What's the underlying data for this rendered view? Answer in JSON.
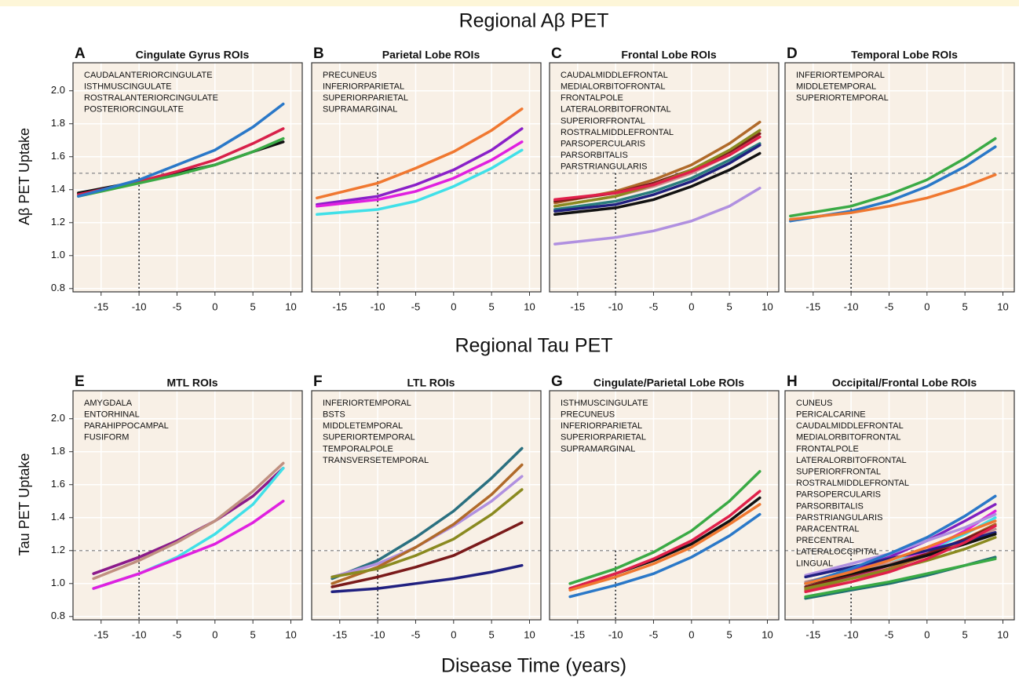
{
  "figure": {
    "row_titles": [
      "Regional Aβ PET",
      "Regional Tau PET"
    ],
    "ylabels": [
      "Aβ PET Uptake",
      "Tau PET Uptake"
    ],
    "xlabel": "Disease Time (years)"
  },
  "chart_data": [
    {
      "type": "line",
      "label": "A",
      "title": "Cingulate Gyrus ROIs",
      "x": [
        -18,
        -10,
        -5,
        0,
        5,
        9
      ],
      "xlim": [
        -18.7,
        11.5
      ],
      "ylim": [
        0.78,
        2.17
      ],
      "xticks": [
        -15,
        -10,
        -5,
        0,
        5,
        10
      ],
      "yticks": [
        {
          "value": 0.8,
          "label": "0.8"
        },
        {
          "value": 1,
          "label": "1.0"
        },
        {
          "value": 1.2,
          "label": "1.2"
        },
        {
          "value": 1.4,
          "label": "1.4"
        },
        {
          "value": 1.6,
          "label": "1.6"
        },
        {
          "value": 1.8,
          "label": "1.8"
        },
        {
          "value": 2,
          "label": "2.0"
        }
      ],
      "hline": 1.5,
      "vline": -10,
      "grid": true,
      "series": [
        {
          "name": "CAUDALANTERIORCINGULATE",
          "color": "#111111",
          "values": [
            1.38,
            1.45,
            1.5,
            1.55,
            1.63,
            1.69
          ]
        },
        {
          "name": "ISTHMUSCINGULATE",
          "color": "#d8204a",
          "values": [
            1.37,
            1.45,
            1.51,
            1.58,
            1.68,
            1.77
          ]
        },
        {
          "name": "ROSTRALANTERIORCINGULATE",
          "color": "#3aaa45",
          "values": [
            1.36,
            1.44,
            1.49,
            1.55,
            1.63,
            1.71
          ]
        },
        {
          "name": "POSTERIORCINGULATE",
          "color": "#2a78c8",
          "values": [
            1.36,
            1.46,
            1.55,
            1.64,
            1.78,
            1.92
          ]
        }
      ]
    },
    {
      "type": "line",
      "label": "B",
      "title": "Parietal Lobe ROIs",
      "x": [
        -18,
        -10,
        -5,
        0,
        5,
        9
      ],
      "xlim": [
        -18.7,
        11.5
      ],
      "ylim": [
        0.78,
        2.17
      ],
      "xticks": [
        -15,
        -10,
        -5,
        0,
        5,
        10
      ],
      "hline": 1.5,
      "vline": -10,
      "grid": true,
      "series": [
        {
          "name": "PRECUNEUS",
          "color": "#f07830",
          "values": [
            1.35,
            1.44,
            1.53,
            1.63,
            1.76,
            1.89
          ]
        },
        {
          "name": "INFERIORPARIETAL",
          "color": "#8a20c8",
          "values": [
            1.31,
            1.36,
            1.43,
            1.52,
            1.64,
            1.77
          ]
        },
        {
          "name": "SUPERIORPARIETAL",
          "color": "#40e0e8",
          "values": [
            1.25,
            1.28,
            1.33,
            1.42,
            1.53,
            1.64
          ]
        },
        {
          "name": "SUPRAMARGINAL",
          "color": "#e020e0",
          "values": [
            1.3,
            1.34,
            1.39,
            1.47,
            1.58,
            1.69
          ]
        }
      ]
    },
    {
      "type": "line",
      "label": "C",
      "title": "Frontal Lobe ROIs",
      "x": [
        -18,
        -10,
        -5,
        0,
        5,
        9
      ],
      "xlim": [
        -18.7,
        11.5
      ],
      "ylim": [
        0.78,
        2.17
      ],
      "xticks": [
        -15,
        -10,
        -5,
        0,
        5,
        10
      ],
      "hline": 1.5,
      "vline": -10,
      "grid": true,
      "series": [
        {
          "name": "CAUDALMIDDLEFRONTAL",
          "color": "#d08a8a",
          "values": [
            1.3,
            1.36,
            1.42,
            1.5,
            1.61,
            1.72
          ]
        },
        {
          "name": "MEDIALORBITOFRONTAL",
          "color": "#2a7d7d",
          "values": [
            1.28,
            1.33,
            1.39,
            1.47,
            1.58,
            1.68
          ]
        },
        {
          "name": "FRONTALPOLE",
          "color": "#b090e0",
          "values": [
            1.07,
            1.11,
            1.15,
            1.21,
            1.3,
            1.41
          ]
        },
        {
          "name": "LATERALORBITOFRONTAL",
          "color": "#b06a2a",
          "values": [
            1.32,
            1.39,
            1.46,
            1.55,
            1.68,
            1.81
          ]
        },
        {
          "name": "SUPERIORFRONTAL",
          "color": "#7a1a1a",
          "values": [
            1.33,
            1.38,
            1.44,
            1.52,
            1.63,
            1.74
          ]
        },
        {
          "name": "ROSTRALMIDDLEFRONTAL",
          "color": "#8a8a20",
          "values": [
            1.3,
            1.36,
            1.43,
            1.52,
            1.64,
            1.76
          ]
        },
        {
          "name": "PARSOPERCULARIS",
          "color": "#202080",
          "values": [
            1.27,
            1.31,
            1.37,
            1.45,
            1.56,
            1.67
          ]
        },
        {
          "name": "PARSORBITALIS",
          "color": "#111111",
          "values": [
            1.25,
            1.29,
            1.34,
            1.42,
            1.52,
            1.62
          ]
        },
        {
          "name": "PARSTRIANGULARIS",
          "color": "#e0204a",
          "values": [
            1.34,
            1.38,
            1.43,
            1.51,
            1.61,
            1.72
          ]
        }
      ]
    },
    {
      "type": "line",
      "label": "D",
      "title": "Temporal Lobe ROIs",
      "x": [
        -18,
        -10,
        -5,
        0,
        5,
        9
      ],
      "xlim": [
        -18.7,
        11.5
      ],
      "ylim": [
        0.78,
        2.17
      ],
      "xticks": [
        -15,
        -10,
        -5,
        0,
        5,
        10
      ],
      "hline": 1.5,
      "vline": -10,
      "grid": true,
      "series": [
        {
          "name": "INFERIORTEMPORAL",
          "color": "#3aaa45",
          "values": [
            1.24,
            1.3,
            1.37,
            1.46,
            1.59,
            1.71
          ]
        },
        {
          "name": "MIDDLETEMPORAL",
          "color": "#2a78c8",
          "values": [
            1.21,
            1.27,
            1.33,
            1.42,
            1.54,
            1.66
          ]
        },
        {
          "name": "SUPERIORTEMPORAL",
          "color": "#f07830",
          "values": [
            1.22,
            1.26,
            1.3,
            1.35,
            1.42,
            1.49
          ]
        }
      ]
    },
    {
      "type": "line",
      "label": "E",
      "title": "MTL ROIs",
      "x": [
        -16,
        -10,
        -5,
        0,
        5,
        9
      ],
      "xlim": [
        -18.7,
        11.5
      ],
      "ylim": [
        0.78,
        2.17
      ],
      "xticks": [
        -15,
        -10,
        -5,
        0,
        5,
        10
      ],
      "yticks": [
        {
          "value": 0.8,
          "label": "0.8"
        },
        {
          "value": 1,
          "label": "1.0"
        },
        {
          "value": 1.2,
          "label": "1.2"
        },
        {
          "value": 1.4,
          "label": "1.4"
        },
        {
          "value": 1.6,
          "label": "1.6"
        },
        {
          "value": 1.8,
          "label": "1.8"
        },
        {
          "value": 2,
          "label": "2.0"
        }
      ],
      "hline": 1.2,
      "vline": -10,
      "grid": true,
      "series": [
        {
          "name": "AMYGDALA",
          "color": "#8b1a8b",
          "values": [
            1.06,
            1.16,
            1.26,
            1.38,
            1.53,
            1.7
          ]
        },
        {
          "name": "ENTORHINAL",
          "color": "#40e0e8",
          "values": [
            0.97,
            1.06,
            1.16,
            1.3,
            1.48,
            1.7
          ]
        },
        {
          "name": "PARAHIPPOCAMPAL",
          "color": "#e020e0",
          "values": [
            0.97,
            1.06,
            1.15,
            1.24,
            1.37,
            1.5
          ]
        },
        {
          "name": "FUSIFORM",
          "color": "#c09080",
          "values": [
            1.03,
            1.14,
            1.25,
            1.38,
            1.56,
            1.73
          ]
        }
      ]
    },
    {
      "type": "line",
      "label": "F",
      "title": "LTL ROIs",
      "x": [
        -16,
        -10,
        -5,
        0,
        5,
        9
      ],
      "xlim": [
        -18.7,
        11.5
      ],
      "ylim": [
        0.78,
        2.17
      ],
      "xticks": [
        -15,
        -10,
        -5,
        0,
        5,
        10
      ],
      "hline": 1.2,
      "vline": -10,
      "grid": true,
      "series": [
        {
          "name": "INFERIORTEMPORAL",
          "color": "#2a7080",
          "values": [
            1.03,
            1.14,
            1.28,
            1.44,
            1.64,
            1.82
          ]
        },
        {
          "name": "BSTS",
          "color": "#b090e0",
          "values": [
            1.04,
            1.12,
            1.22,
            1.35,
            1.5,
            1.65
          ]
        },
        {
          "name": "MIDDLETEMPORAL",
          "color": "#b06a2a",
          "values": [
            1.0,
            1.1,
            1.22,
            1.36,
            1.54,
            1.72
          ]
        },
        {
          "name": "SUPERIORTEMPORAL",
          "color": "#7a1a1a",
          "values": [
            0.98,
            1.04,
            1.1,
            1.17,
            1.28,
            1.37
          ]
        },
        {
          "name": "TEMPORALPOLE",
          "color": "#8a8a20",
          "values": [
            1.04,
            1.09,
            1.17,
            1.27,
            1.42,
            1.57
          ]
        },
        {
          "name": "TRANSVERSETEMPORAL",
          "color": "#202080",
          "values": [
            0.95,
            0.97,
            1.0,
            1.03,
            1.07,
            1.11
          ]
        }
      ]
    },
    {
      "type": "line",
      "label": "G",
      "title": "Cingulate/Parietal Lobe ROIs",
      "x": [
        -16,
        -10,
        -5,
        0,
        5,
        9
      ],
      "xlim": [
        -18.7,
        11.5
      ],
      "ylim": [
        0.78,
        2.17
      ],
      "xticks": [
        -15,
        -10,
        -5,
        0,
        5,
        10
      ],
      "hline": 1.2,
      "vline": -10,
      "grid": true,
      "series": [
        {
          "name": "ISTHMUSCINGULATE",
          "color": "#111111",
          "values": [
            0.97,
            1.06,
            1.14,
            1.24,
            1.38,
            1.52
          ]
        },
        {
          "name": "PRECUNEUS",
          "color": "#e0204a",
          "values": [
            0.97,
            1.06,
            1.15,
            1.26,
            1.41,
            1.56
          ]
        },
        {
          "name": "INFERIORPARIETAL",
          "color": "#3aaa45",
          "values": [
            1.0,
            1.09,
            1.19,
            1.32,
            1.5,
            1.68
          ]
        },
        {
          "name": "SUPERIORPARIETAL",
          "color": "#2a78c8",
          "values": [
            0.92,
            0.99,
            1.06,
            1.16,
            1.29,
            1.42
          ]
        },
        {
          "name": "SUPRAMARGINAL",
          "color": "#f07830",
          "values": [
            0.96,
            1.04,
            1.12,
            1.22,
            1.36,
            1.48
          ]
        }
      ]
    },
    {
      "type": "line",
      "label": "H",
      "title": "Occipital/Frontal Lobe ROIs",
      "x": [
        -16,
        -10,
        -5,
        0,
        5,
        9
      ],
      "xlim": [
        -18.7,
        11.5
      ],
      "ylim": [
        0.78,
        2.17
      ],
      "xticks": [
        -15,
        -10,
        -5,
        0,
        5,
        10
      ],
      "hline": 1.2,
      "vline": -10,
      "grid": true,
      "series": [
        {
          "name": "CUNEUS",
          "color": "#8020c0",
          "values": [
            1.0,
            1.08,
            1.16,
            1.26,
            1.38,
            1.48
          ]
        },
        {
          "name": "PERICALCARINE",
          "color": "#40e0e8",
          "values": [
            0.98,
            1.05,
            1.12,
            1.2,
            1.3,
            1.4
          ]
        },
        {
          "name": "CAUDALMIDDLEFRONTAL",
          "color": "#e020e0",
          "values": [
            0.97,
            1.04,
            1.11,
            1.2,
            1.32,
            1.44
          ]
        },
        {
          "name": "MEDIALORBITOFRONTAL",
          "color": "#c09090",
          "values": [
            1.01,
            1.07,
            1.12,
            1.18,
            1.26,
            1.33
          ]
        },
        {
          "name": "FRONTALPOLE",
          "color": "#207070",
          "values": [
            0.91,
            0.96,
            1.0,
            1.05,
            1.11,
            1.16
          ]
        },
        {
          "name": "LATERALORBITOFRONTAL",
          "color": "#b090e0",
          "values": [
            1.05,
            1.12,
            1.18,
            1.26,
            1.34,
            1.42
          ]
        },
        {
          "name": "SUPERIORFRONTAL",
          "color": "#b06a2a",
          "values": [
            0.96,
            1.03,
            1.09,
            1.17,
            1.27,
            1.36
          ]
        },
        {
          "name": "ROSTRALMIDDLEFRONTAL",
          "color": "#7a1a1a",
          "values": [
            0.98,
            1.05,
            1.11,
            1.18,
            1.27,
            1.35
          ]
        },
        {
          "name": "PARSOPERCULARIS",
          "color": "#8a8a20",
          "values": [
            0.97,
            1.03,
            1.08,
            1.14,
            1.21,
            1.28
          ]
        },
        {
          "name": "PARSORBITALIS",
          "color": "#202080",
          "values": [
            1.04,
            1.1,
            1.15,
            1.2,
            1.26,
            1.31
          ]
        },
        {
          "name": "PARSTRIANGULARIS",
          "color": "#111111",
          "values": [
            1.0,
            1.06,
            1.11,
            1.17,
            1.24,
            1.3
          ]
        },
        {
          "name": "PARACENTRAL",
          "color": "#e0204a",
          "values": [
            0.95,
            1.01,
            1.07,
            1.15,
            1.25,
            1.35
          ]
        },
        {
          "name": "PRECENTRAL",
          "color": "#3aaa45",
          "values": [
            0.92,
            0.97,
            1.01,
            1.06,
            1.11,
            1.15
          ]
        },
        {
          "name": "LATERALOCCIPITAL",
          "color": "#2a78c8",
          "values": [
            1.0,
            1.09,
            1.18,
            1.28,
            1.41,
            1.53
          ]
        },
        {
          "name": "LINGUAL",
          "color": "#f07830",
          "values": [
            1.0,
            1.07,
            1.14,
            1.22,
            1.31,
            1.38
          ]
        }
      ]
    }
  ]
}
